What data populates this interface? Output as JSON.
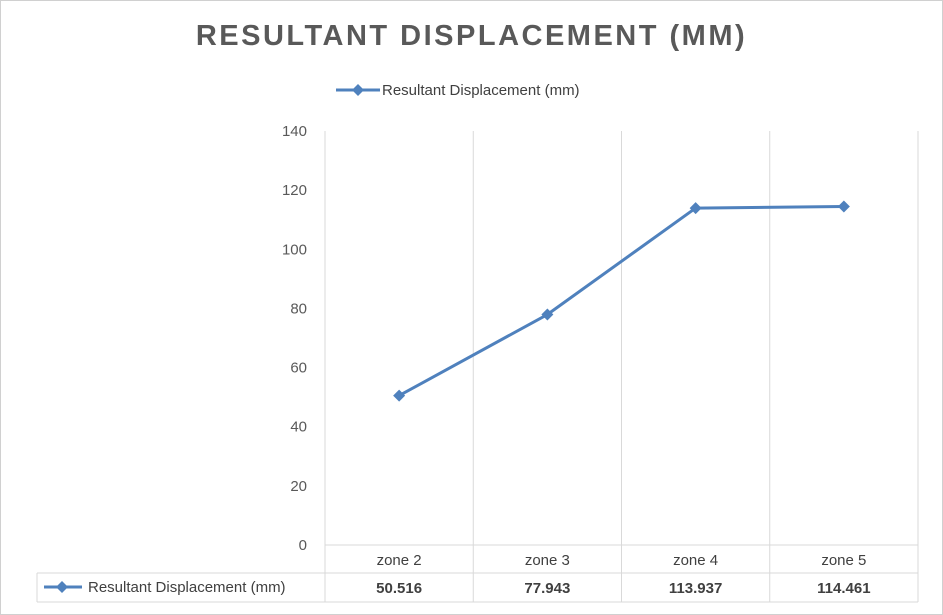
{
  "chart_data": {
    "type": "line",
    "title": "RESULTANT DISPLACEMENT (MM)",
    "categories": [
      "zone 2",
      "zone 3",
      "zone 4",
      "zone 5"
    ],
    "series": [
      {
        "name": "Resultant Displacement (mm)",
        "values": [
          50.516,
          77.943,
          113.937,
          114.461
        ],
        "color": "#4f81bd"
      }
    ],
    "ylim": [
      0,
      140
    ],
    "yticks": [
      0,
      20,
      40,
      60,
      80,
      100,
      120,
      140
    ],
    "data_table": {
      "row_label": "Resultant Displacement (mm)",
      "cells": [
        "50.516",
        "77.943",
        "113.937",
        "114.461"
      ]
    },
    "grid": "vertical",
    "legend_position": "top",
    "marker": "diamond"
  }
}
